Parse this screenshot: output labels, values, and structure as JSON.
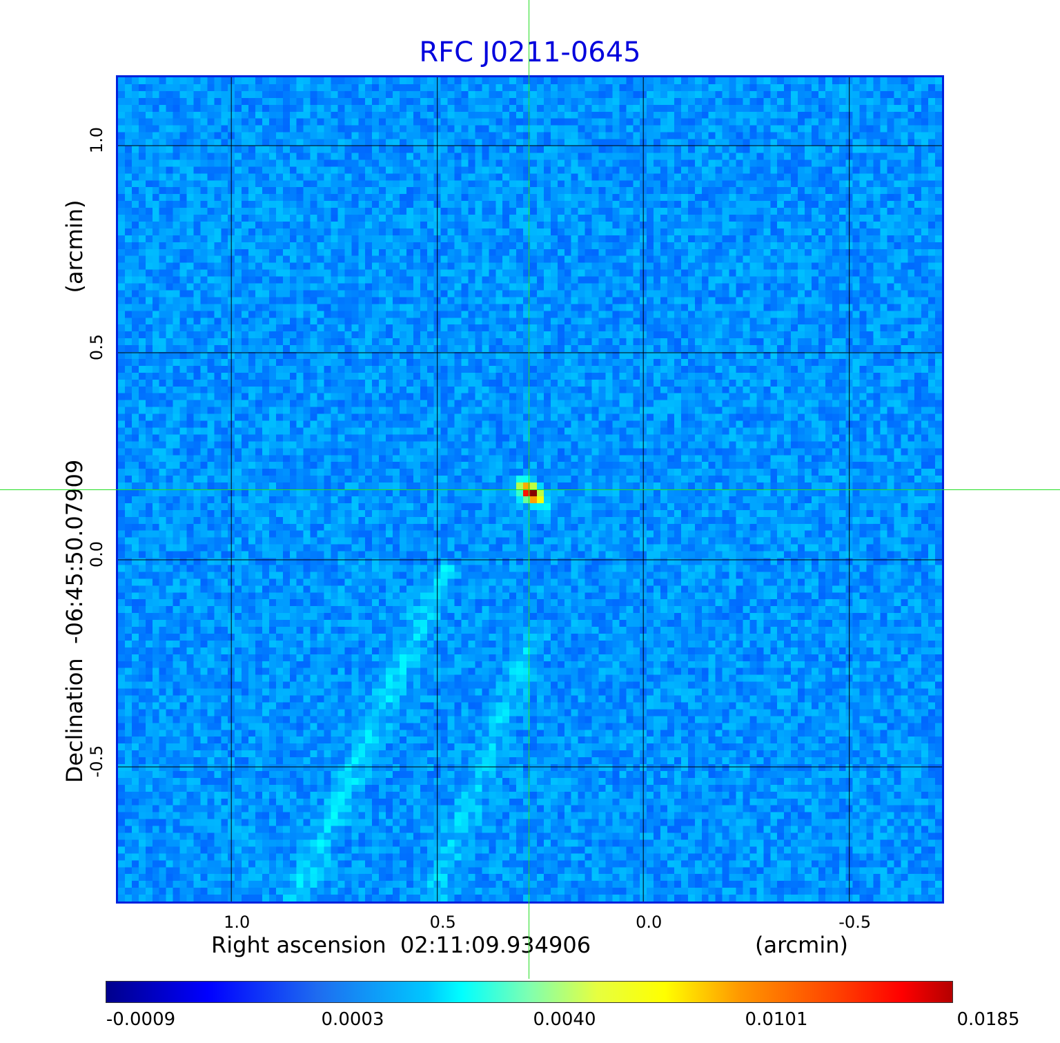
{
  "chart_data": {
    "type": "heatmap",
    "title": "RFC J0211-0645",
    "xlabel": "Right ascension  02:11:09.934906",
    "xunit": "(arcmin)",
    "ylabel": "Declination  -06:45:50.07909",
    "yunit": "(arcmin)",
    "xlim": [
      1.28,
      -0.73
    ],
    "ylim": [
      -0.83,
      1.17
    ],
    "x_ticks": [
      "1.0",
      "0.5",
      "0.0",
      "-0.5"
    ],
    "x_tick_values": [
      1.0,
      0.5,
      0.0,
      -0.5
    ],
    "y_ticks": [
      "1.0",
      "0.5",
      "0.0",
      "-0.5"
    ],
    "y_tick_values": [
      1.0,
      0.5,
      0.0,
      -0.5
    ],
    "grid": true,
    "colormap": "jet",
    "colorbar_ticks": [
      "-0.0009",
      "0.0003",
      "0.0040",
      "0.0101",
      "0.0185"
    ],
    "colorbar_range": [
      -0.0009,
      0.0185
    ],
    "peak": {
      "x": 0.28,
      "y": 0.17,
      "value": 0.0185
    },
    "crosshair": {
      "x": 0.28,
      "y": 0.17
    }
  },
  "colors": {
    "title": "#0000dd",
    "background_field": "#1e6cf0",
    "grid": "#000000",
    "crosshair": "#22dd22",
    "frame": "#0022dd"
  }
}
